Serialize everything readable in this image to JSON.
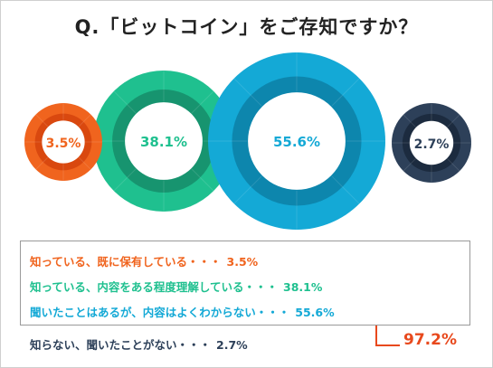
{
  "title": "Q.「ビットコイン」をご存知ですか？",
  "chart_data": {
    "type": "pie",
    "title": "Q.「ビットコイン」をご存知ですか？",
    "series": [
      {
        "name": "知っている、既に保有している・・・",
        "value": 3.5,
        "label": "3.5%",
        "color": "#f0641e",
        "ring_dark": "#d9480f"
      },
      {
        "name": "知っている、内容をある程度理解している・・・",
        "value": 38.1,
        "label": "38.1%",
        "color": "#1fc08f",
        "ring_dark": "#17946f"
      },
      {
        "name": "聞いたことはあるが、内容はよくわからない・・・",
        "value": 55.6,
        "label": "55.6%",
        "color": "#14a9d6",
        "ring_dark": "#0d86ad"
      },
      {
        "name": "知らない、聞いたことがない・・・",
        "value": 2.7,
        "label": "2.7%",
        "color": "#2d4059",
        "ring_dark": "#1c2b3f"
      }
    ],
    "total": {
      "label": "97.2%",
      "color": "#e8491d"
    }
  }
}
